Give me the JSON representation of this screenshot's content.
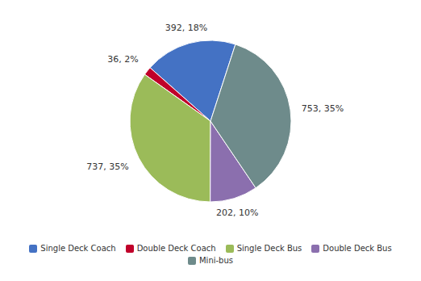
{
  "chart_data": {
    "type": "pie",
    "categories": [
      "Single Deck Coach",
      "Double Deck Coach",
      "Single Deck Bus",
      "Double Deck Bus",
      "Mini-bus"
    ],
    "values": [
      392,
      36,
      737,
      202,
      753
    ],
    "value_labels": [
      "392, 18%",
      "36, 2%",
      "737, 35%",
      "202, 10%",
      "753, 35%"
    ],
    "colors": [
      "#4472C4",
      "#C0002A",
      "#9BBB59",
      "#8B6FAE",
      "#6E8B8B"
    ],
    "data_labels": true,
    "legend": "bottom"
  }
}
